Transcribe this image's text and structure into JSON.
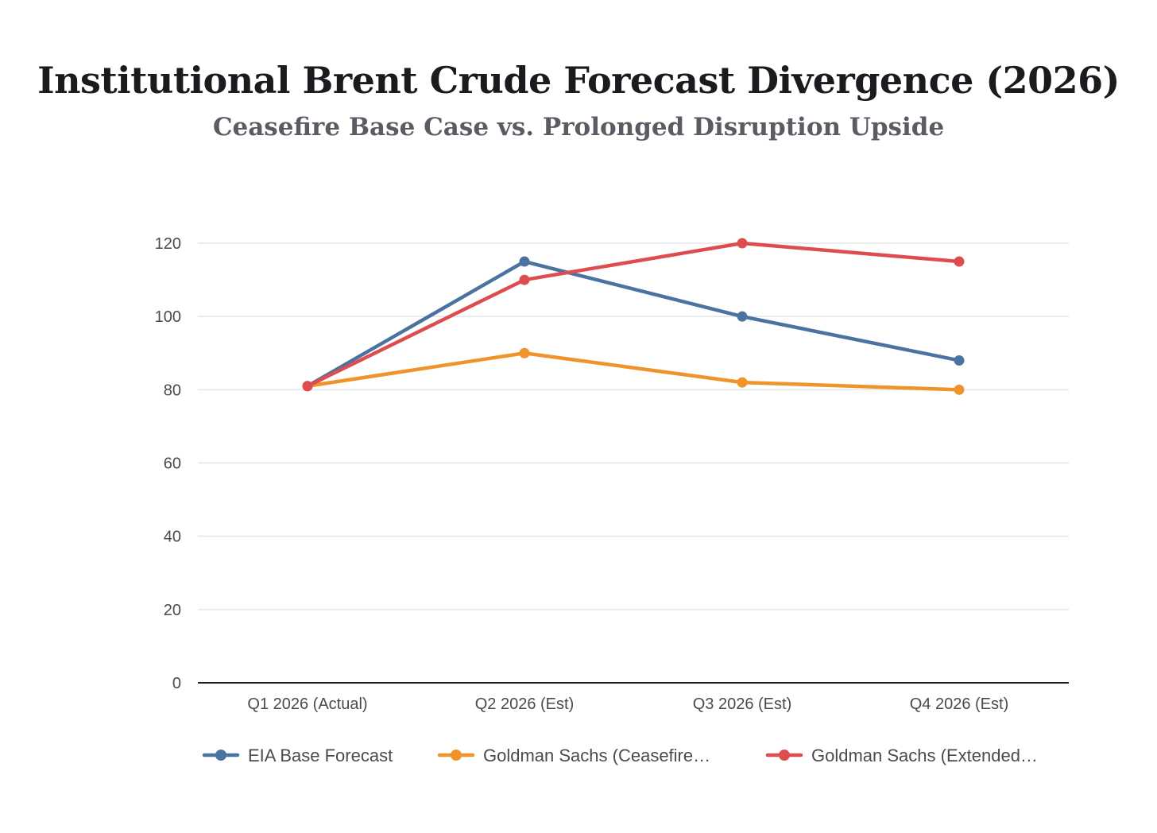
{
  "chart_data": {
    "type": "line",
    "title": "Institutional Brent Crude Forecast Divergence (2026)",
    "subtitle": "Ceasefire Base Case vs. Prolonged Disruption Upside",
    "categories": [
      "Q1 2026 (Actual)",
      "Q2 2026 (Est)",
      "Q3 2026 (Est)",
      "Q4 2026 (Est)"
    ],
    "yticks": [
      0,
      20,
      40,
      60,
      80,
      100,
      120
    ],
    "ylim": [
      0,
      120
    ],
    "xlabel": "",
    "ylabel": "",
    "grid": true,
    "legend_position": "bottom",
    "series": [
      {
        "name": "EIA Base Forecast",
        "legend_label": "EIA Base Forecast",
        "color": "#4a73a1",
        "values": [
          81,
          115,
          100,
          88
        ]
      },
      {
        "name": "Goldman Sachs (Ceasefire Scenario)",
        "legend_label": "Goldman Sachs (Ceasefire…",
        "color": "#f0932b",
        "values": [
          81,
          90,
          82,
          80
        ]
      },
      {
        "name": "Goldman Sachs (Extended Disruption)",
        "legend_label": "Goldman Sachs (Extended…",
        "color": "#dd4d4f",
        "values": [
          81,
          110,
          120,
          115
        ]
      }
    ]
  }
}
